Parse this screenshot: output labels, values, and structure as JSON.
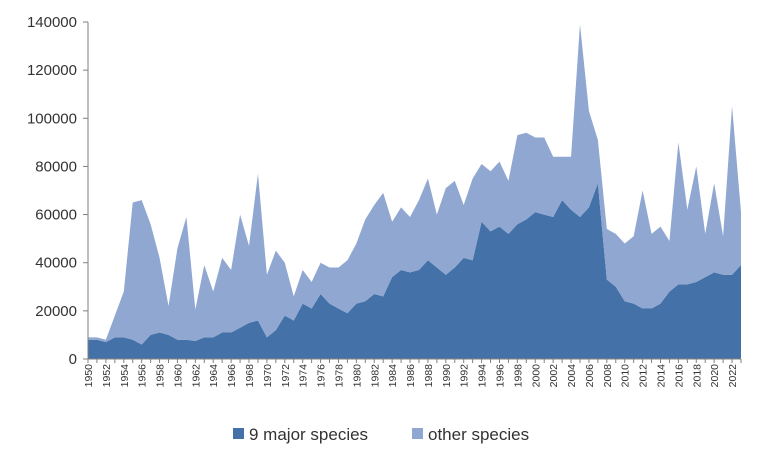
{
  "chart_data": {
    "type": "area",
    "stacked": true,
    "title": "",
    "xlabel": "",
    "ylabel": "",
    "ylim": [
      0,
      140000
    ],
    "yticks": [
      0,
      20000,
      40000,
      60000,
      80000,
      100000,
      120000,
      140000
    ],
    "xlim": [
      1950,
      2023
    ],
    "xtick_labels": [
      "1950",
      "1952",
      "1954",
      "1956",
      "1958",
      "1960",
      "1962",
      "1964",
      "1966",
      "1968",
      "1970",
      "1972",
      "1974",
      "1976",
      "1978",
      "1980",
      "1982",
      "1984",
      "1986",
      "1988",
      "1990",
      "1992",
      "1994",
      "1996",
      "1998",
      "2000",
      "2002",
      "2004",
      "2006",
      "2008",
      "2010",
      "2012",
      "2014",
      "2016",
      "2018",
      "2020",
      "2022"
    ],
    "grid": false,
    "legend_position": "bottom",
    "x": [
      1950,
      1951,
      1952,
      1953,
      1954,
      1955,
      1956,
      1957,
      1958,
      1959,
      1960,
      1961,
      1962,
      1963,
      1964,
      1965,
      1966,
      1967,
      1968,
      1969,
      1970,
      1971,
      1972,
      1973,
      1974,
      1975,
      1976,
      1977,
      1978,
      1979,
      1980,
      1981,
      1982,
      1983,
      1984,
      1985,
      1986,
      1987,
      1988,
      1989,
      1990,
      1991,
      1992,
      1993,
      1994,
      1995,
      1996,
      1997,
      1998,
      1999,
      2000,
      2001,
      2002,
      2003,
      2004,
      2005,
      2006,
      2007,
      2008,
      2009,
      2010,
      2011,
      2012,
      2013,
      2014,
      2015,
      2016,
      2017,
      2018,
      2019,
      2020,
      2021,
      2022,
      2023
    ],
    "series": [
      {
        "name": "9 major species",
        "color": "#4472a8",
        "values": [
          8000,
          8000,
          7000,
          9000,
          9000,
          8000,
          6000,
          10000,
          11000,
          10000,
          8000,
          8000,
          7500,
          9000,
          9000,
          11000,
          11000,
          13000,
          15000,
          16000,
          9000,
          12000,
          18000,
          16000,
          23000,
          21000,
          27000,
          23000,
          21000,
          19000,
          23000,
          24000,
          27000,
          26000,
          34000,
          37000,
          36000,
          37000,
          41000,
          38000,
          35000,
          38000,
          42000,
          41000,
          57000,
          53000,
          55000,
          52000,
          56000,
          58000,
          61000,
          60000,
          59000,
          66000,
          62000,
          59000,
          63000,
          73000,
          33000,
          30000,
          24000,
          23000,
          21000,
          21000,
          23000,
          28000,
          31000,
          31000,
          32000,
          34000,
          36000,
          35000,
          35000,
          39000
        ]
      },
      {
        "name": "other species",
        "color": "#8fa7d1",
        "values": [
          1000,
          1000,
          1000,
          9000,
          19000,
          57000,
          60000,
          46000,
          31000,
          12000,
          38000,
          51000,
          13000,
          30000,
          19000,
          31000,
          26000,
          47000,
          32000,
          61000,
          26000,
          33000,
          22000,
          10000,
          14000,
          11000,
          13000,
          15000,
          17000,
          22000,
          25000,
          34000,
          37000,
          43000,
          23000,
          26000,
          23000,
          29000,
          34000,
          22000,
          36000,
          36000,
          22000,
          34000,
          24000,
          25000,
          27000,
          22000,
          37000,
          36000,
          31000,
          32000,
          25000,
          18000,
          22000,
          80000,
          40000,
          18000,
          21000,
          22000,
          24000,
          28000,
          49000,
          31000,
          32000,
          21000,
          59000,
          31000,
          48000,
          18000,
          37000,
          16000,
          70000,
          22000
        ]
      }
    ]
  }
}
